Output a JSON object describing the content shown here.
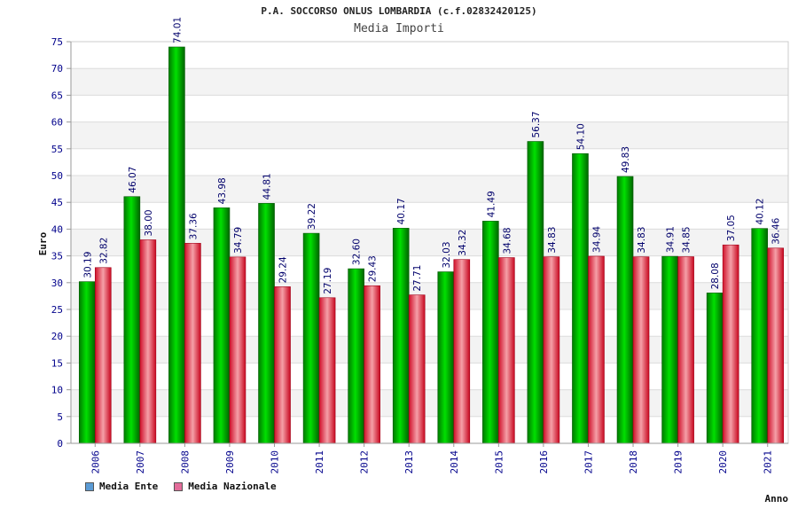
{
  "chart_data": {
    "type": "bar",
    "title": "P.A. SOCCORSO ONLUS LOMBARDIA (c.f.02832420125)",
    "subtitle": "Media Importi",
    "xlabel": "Anno",
    "ylabel": "Euro",
    "ylim": [
      0,
      75
    ],
    "yticks": [
      0,
      5,
      10,
      15,
      20,
      25,
      30,
      35,
      40,
      45,
      50,
      55,
      60,
      65,
      70,
      75
    ],
    "categories": [
      "2006",
      "2007",
      "2008",
      "2009",
      "2010",
      "2011",
      "2012",
      "2013",
      "2014",
      "2015",
      "2016",
      "2017",
      "2018",
      "2019",
      "2020",
      "2021"
    ],
    "series": [
      {
        "name": "Media Ente",
        "color": "#00b300",
        "values": [
          30.19,
          46.07,
          74.01,
          43.98,
          44.81,
          39.22,
          32.6,
          40.17,
          32.03,
          41.49,
          56.37,
          54.1,
          49.83,
          34.91,
          28.08,
          40.12
        ],
        "labels": [
          "30.19",
          "46.07",
          "74.01",
          "43.98",
          "44.81",
          "39.22",
          "32.60",
          "40.17",
          "32.03",
          "41.49",
          "56.37",
          "54.10",
          "49.83",
          "34.91",
          "28.08",
          "40.12"
        ]
      },
      {
        "name": "Media Nazionale",
        "color": "#e8303a",
        "values": [
          32.82,
          38.0,
          37.36,
          34.79,
          29.24,
          27.19,
          29.43,
          27.71,
          34.32,
          34.68,
          34.83,
          34.94,
          34.83,
          34.85,
          37.05,
          36.46
        ],
        "labels": [
          "32.82",
          "38.00",
          "37.36",
          "34.79",
          "29.24",
          "27.19",
          "29.43",
          "27.71",
          "34.32",
          "34.68",
          "34.83",
          "34.94",
          "34.83",
          "34.85",
          "37.05",
          "36.46"
        ]
      }
    ],
    "legend": [
      {
        "label": "Media Ente",
        "color": "#5b9bd5"
      },
      {
        "label": "Media Nazionale",
        "color": "#e36c9a"
      }
    ],
    "legend_position": "bottom-left",
    "grid": true
  }
}
